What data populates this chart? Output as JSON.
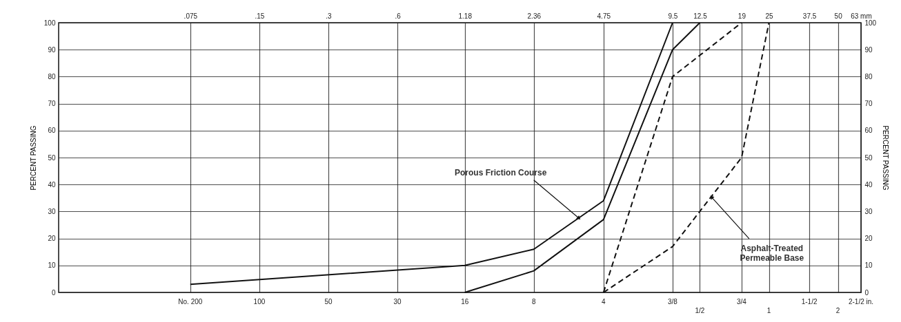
{
  "chart_data": {
    "type": "line",
    "ylabel": "PERCENT PASSING",
    "y2label": "PERCENT PASSING",
    "xlim": [
      0.02,
      63
    ],
    "ylim": [
      0,
      100
    ],
    "y2lim": [
      0,
      100
    ],
    "yticks": [
      0,
      10,
      20,
      30,
      40,
      50,
      60,
      70,
      80,
      90,
      100
    ],
    "y2ticks": [
      0,
      10,
      20,
      30,
      40,
      50,
      60,
      70,
      80,
      90,
      100
    ],
    "xticks": [
      {
        "value": 0.075,
        "label": ".075"
      },
      {
        "value": 0.15,
        "label": ".15"
      },
      {
        "value": 0.3,
        "label": ".3"
      },
      {
        "value": 0.6,
        "label": ".6"
      },
      1.18,
      2.36,
      4.75,
      9.5,
      12.5,
      19,
      25,
      37.5,
      50,
      {
        "value": 63,
        "label": "63 mm"
      }
    ],
    "grid": true,
    "log": "x",
    "series": [
      {
        "color": "#111111",
        "line_style": "solid",
        "x": [
          0.075,
          1.18,
          2.36,
          4.75,
          9.5
        ],
        "values": [
          3,
          10,
          16,
          34,
          100
        ]
      },
      {
        "color": "#111111",
        "line_style": "solid",
        "x": [
          1.18,
          2.36,
          4.75,
          9.5,
          12.5
        ],
        "values": [
          0,
          8,
          27,
          90,
          100
        ]
      },
      {
        "color": "#111111",
        "line_style": "dashed",
        "x": [
          4.75,
          9.5,
          19
        ],
        "values": [
          0,
          80,
          100
        ]
      },
      {
        "color": "#111111",
        "line_style": "dashed",
        "x": [
          4.75,
          9.5,
          19,
          25
        ],
        "values": [
          0,
          17,
          50,
          100
        ]
      }
    ],
    "annotations": [
      {
        "text": "Porous Friction Course",
        "x": 3.7,
        "y": 27.6
      },
      {
        "text": "Asphalt-Treated\nPermeable Base",
        "x": 14,
        "y": 35.5
      },
      "No. 200",
      "100",
      "50",
      "30",
      "16",
      "8",
      "4",
      "3/8",
      "1/2",
      "3/4",
      "1",
      "1-1/2",
      "2",
      "2-1/2 in."
    ]
  }
}
